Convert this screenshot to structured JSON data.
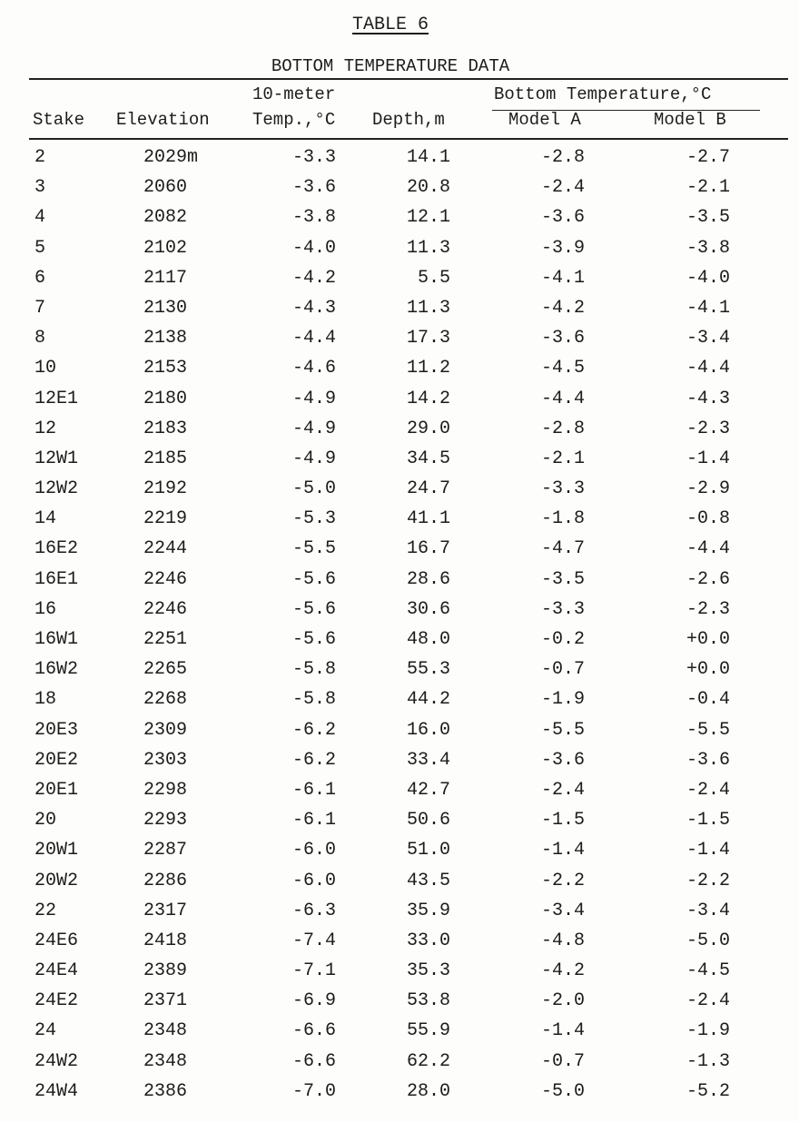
{
  "title": "TABLE 6",
  "subtitle": "BOTTOM TEMPERATURE DATA",
  "headers": {
    "stake": "Stake",
    "elevation": "Elevation",
    "temp_line1": "10-meter",
    "temp_line2": "Temp.,°C",
    "depth": "Depth,m",
    "bottom_temp": "Bottom Temperature,°C",
    "model_a": "Model A",
    "model_b": "Model B"
  },
  "rows": [
    {
      "stake": "2",
      "elevation": "2029m",
      "temp": "-3.3",
      "depth": "14.1",
      "model_a": "-2.8",
      "model_b": "-2.7"
    },
    {
      "stake": "3",
      "elevation": "2060",
      "temp": "-3.6",
      "depth": "20.8",
      "model_a": "-2.4",
      "model_b": "-2.1"
    },
    {
      "stake": "4",
      "elevation": "2082",
      "temp": "-3.8",
      "depth": "12.1",
      "model_a": "-3.6",
      "model_b": "-3.5"
    },
    {
      "stake": "5",
      "elevation": "2102",
      "temp": "-4.0",
      "depth": "11.3",
      "model_a": "-3.9",
      "model_b": "-3.8"
    },
    {
      "stake": "6",
      "elevation": "2117",
      "temp": "-4.2",
      "depth": "5.5",
      "model_a": "-4.1",
      "model_b": "-4.0"
    },
    {
      "stake": "7",
      "elevation": "2130",
      "temp": "-4.3",
      "depth": "11.3",
      "model_a": "-4.2",
      "model_b": "-4.1"
    },
    {
      "stake": "8",
      "elevation": "2138",
      "temp": "-4.4",
      "depth": "17.3",
      "model_a": "-3.6",
      "model_b": "-3.4"
    },
    {
      "stake": "10",
      "elevation": "2153",
      "temp": "-4.6",
      "depth": "11.2",
      "model_a": "-4.5",
      "model_b": "-4.4"
    },
    {
      "stake": "12E1",
      "elevation": "2180",
      "temp": "-4.9",
      "depth": "14.2",
      "model_a": "-4.4",
      "model_b": "-4.3"
    },
    {
      "stake": "12",
      "elevation": "2183",
      "temp": "-4.9",
      "depth": "29.0",
      "model_a": "-2.8",
      "model_b": "-2.3"
    },
    {
      "stake": "12W1",
      "elevation": "2185",
      "temp": "-4.9",
      "depth": "34.5",
      "model_a": "-2.1",
      "model_b": "-1.4"
    },
    {
      "stake": "12W2",
      "elevation": "2192",
      "temp": "-5.0",
      "depth": "24.7",
      "model_a": "-3.3",
      "model_b": "-2.9"
    },
    {
      "stake": "14",
      "elevation": "2219",
      "temp": "-5.3",
      "depth": "41.1",
      "model_a": "-1.8",
      "model_b": "-0.8"
    },
    {
      "stake": "16E2",
      "elevation": "2244",
      "temp": "-5.5",
      "depth": "16.7",
      "model_a": "-4.7",
      "model_b": "-4.4"
    },
    {
      "stake": "16E1",
      "elevation": "2246",
      "temp": "-5.6",
      "depth": "28.6",
      "model_a": "-3.5",
      "model_b": "-2.6"
    },
    {
      "stake": "16",
      "elevation": "2246",
      "temp": "-5.6",
      "depth": "30.6",
      "model_a": "-3.3",
      "model_b": "-2.3"
    },
    {
      "stake": "16W1",
      "elevation": "2251",
      "temp": "-5.6",
      "depth": "48.0",
      "model_a": "-0.2",
      "model_b": "+0.0"
    },
    {
      "stake": "16W2",
      "elevation": "2265",
      "temp": "-5.8",
      "depth": "55.3",
      "model_a": "-0.7",
      "model_b": "+0.0"
    },
    {
      "stake": "18",
      "elevation": "2268",
      "temp": "-5.8",
      "depth": "44.2",
      "model_a": "-1.9",
      "model_b": "-0.4"
    },
    {
      "stake": "20E3",
      "elevation": "2309",
      "temp": "-6.2",
      "depth": "16.0",
      "model_a": "-5.5",
      "model_b": "-5.5"
    },
    {
      "stake": "20E2",
      "elevation": "2303",
      "temp": "-6.2",
      "depth": "33.4",
      "model_a": "-3.6",
      "model_b": "-3.6"
    },
    {
      "stake": "20E1",
      "elevation": "2298",
      "temp": "-6.1",
      "depth": "42.7",
      "model_a": "-2.4",
      "model_b": "-2.4"
    },
    {
      "stake": "20",
      "elevation": "2293",
      "temp": "-6.1",
      "depth": "50.6",
      "model_a": "-1.5",
      "model_b": "-1.5"
    },
    {
      "stake": "20W1",
      "elevation": "2287",
      "temp": "-6.0",
      "depth": "51.0",
      "model_a": "-1.4",
      "model_b": "-1.4"
    },
    {
      "stake": "20W2",
      "elevation": "2286",
      "temp": "-6.0",
      "depth": "43.5",
      "model_a": "-2.2",
      "model_b": "-2.2"
    },
    {
      "stake": "22",
      "elevation": "2317",
      "temp": "-6.3",
      "depth": "35.9",
      "model_a": "-3.4",
      "model_b": "-3.4"
    },
    {
      "stake": "24E6",
      "elevation": "2418",
      "temp": "-7.4",
      "depth": "33.0",
      "model_a": "-4.8",
      "model_b": "-5.0"
    },
    {
      "stake": "24E4",
      "elevation": "2389",
      "temp": "-7.1",
      "depth": "35.3",
      "model_a": "-4.2",
      "model_b": "-4.5"
    },
    {
      "stake": "24E2",
      "elevation": "2371",
      "temp": "-6.9",
      "depth": "53.8",
      "model_a": "-2.0",
      "model_b": "-2.4"
    },
    {
      "stake": "24",
      "elevation": "2348",
      "temp": "-6.6",
      "depth": "55.9",
      "model_a": "-1.4",
      "model_b": "-1.9"
    },
    {
      "stake": "24W2",
      "elevation": "2348",
      "temp": "-6.6",
      "depth": "62.2",
      "model_a": "-0.7",
      "model_b": "-1.3"
    },
    {
      "stake": "24W4",
      "elevation": "2386",
      "temp": "-7.0",
      "depth": "28.0",
      "model_a": "-5.0",
      "model_b": "-5.2"
    }
  ]
}
